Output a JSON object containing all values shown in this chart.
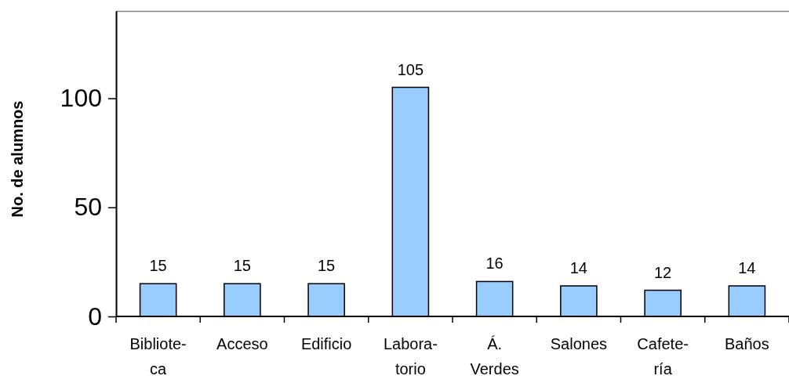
{
  "chart_data": {
    "type": "bar",
    "ylabel": "No. de alumnos",
    "categories": [
      "Bibliote-\nca",
      "Acceso",
      "Edificio",
      "Labora-\ntorio",
      "Á.\nVerdes",
      "Salones",
      "Cafete-\nría",
      "Baños"
    ],
    "values": [
      15,
      15,
      15,
      105,
      16,
      14,
      12,
      14
    ],
    "color": "#99ccff",
    "ylim": [
      0,
      140
    ],
    "yticks": [
      0,
      50,
      100
    ],
    "data_labels": true
  }
}
